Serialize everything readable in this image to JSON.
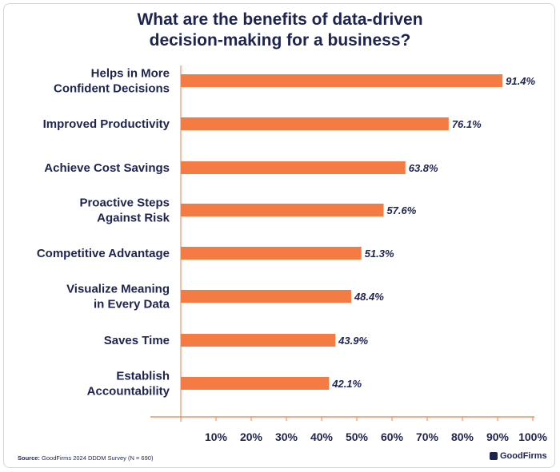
{
  "chart_data": {
    "type": "bar",
    "orientation": "horizontal",
    "title_lines": [
      "What are the benefits of data-driven",
      "decision-making for a business?"
    ],
    "categories": [
      [
        "Helps in More",
        "Confident Decisions"
      ],
      [
        "Improved Productivity"
      ],
      [
        "Achieve Cost Savings"
      ],
      [
        "Proactive Steps",
        "Against Risk"
      ],
      [
        "Competitive Advantage"
      ],
      [
        "Visualize Meaning",
        "in Every Data"
      ],
      [
        "Saves Time"
      ],
      [
        "Establish",
        "Accountability"
      ]
    ],
    "values": [
      91.4,
      76.1,
      63.8,
      57.6,
      51.3,
      48.4,
      43.9,
      42.1
    ],
    "value_labels": [
      "91.4%",
      "76.1%",
      "63.8%",
      "57.6%",
      "51.3%",
      "48.4%",
      "43.9%",
      "42.1%"
    ],
    "x_ticks": [
      "10%",
      "20%",
      "30%",
      "40%",
      "50%",
      "60%",
      "70%",
      "80%",
      "90%",
      "100%"
    ],
    "xlim": [
      0,
      100
    ],
    "bar_color": "#f47c44",
    "text_color": "#1d2451",
    "axis_color": "#f47c44"
  },
  "source": {
    "label": "Source:",
    "text": " GoodFirms 2024 DDDM Survey (N = 690)"
  },
  "brand": "GoodFirms"
}
